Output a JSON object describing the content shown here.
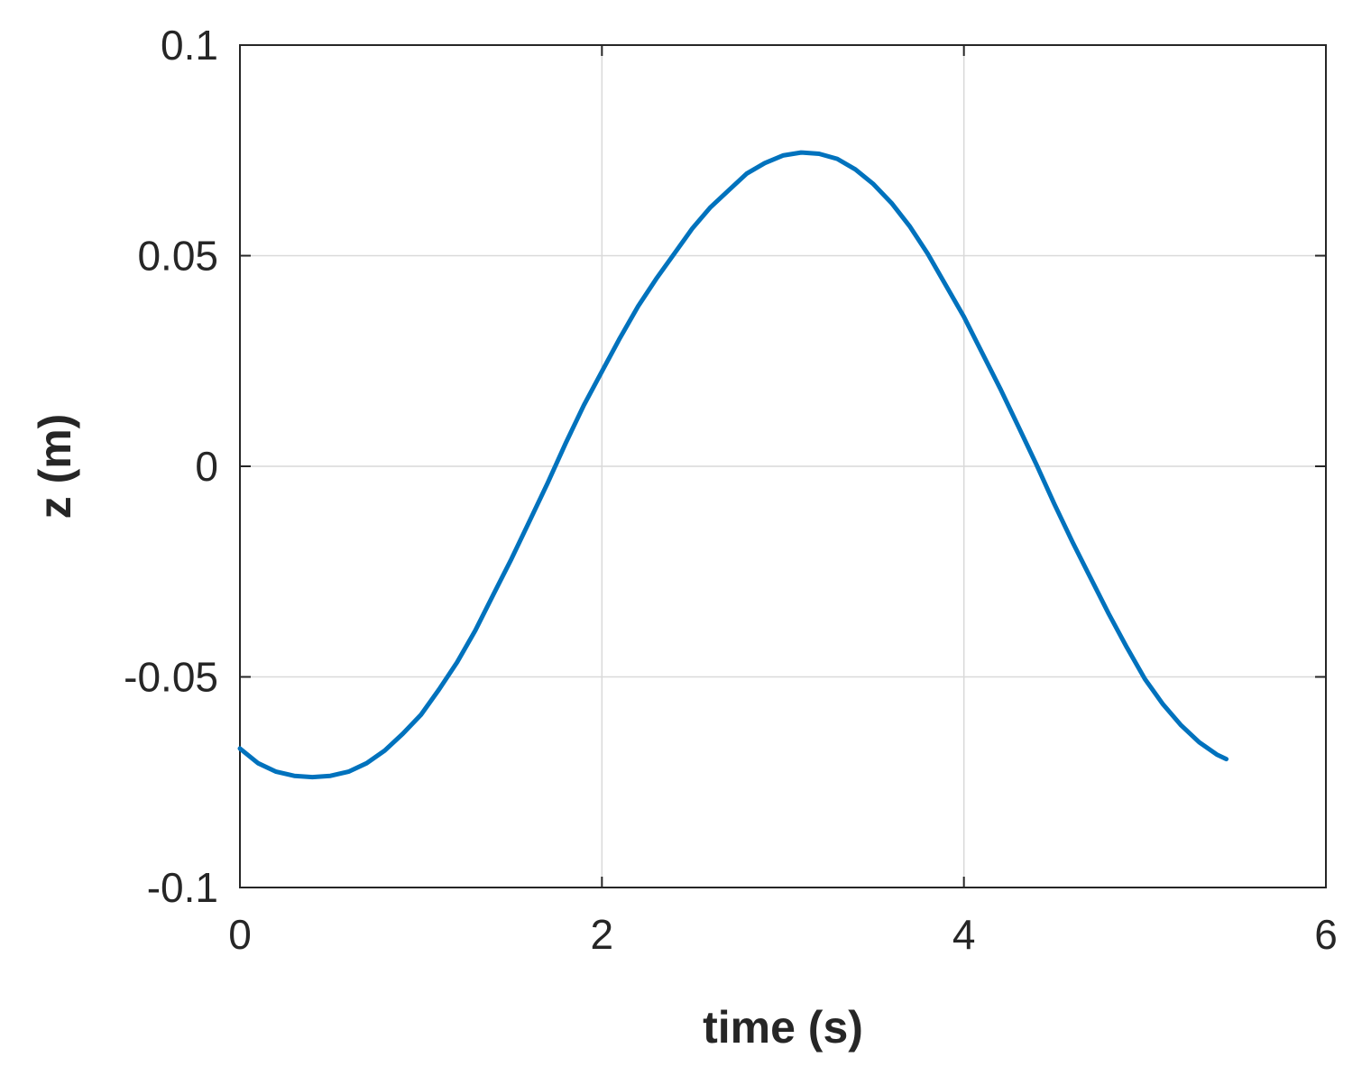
{
  "chart_data": {
    "type": "line",
    "title": "",
    "xlabel": "time (s)",
    "ylabel": "z (m)",
    "xlim": [
      0,
      6
    ],
    "ylim": [
      -0.1,
      0.1
    ],
    "xticks": [
      0,
      2,
      4,
      6
    ],
    "xtick_labels": [
      "0",
      "2",
      "4",
      "6"
    ],
    "yticks": [
      -0.1,
      -0.05,
      0,
      0.05,
      0.1
    ],
    "ytick_labels": [
      "-0.1",
      "-0.05",
      "0",
      "0.05",
      "0.1"
    ],
    "grid": true,
    "legend": "none",
    "colors": {
      "line": "#0072BD",
      "axes": "#262626",
      "grid": "#d9d9d9"
    },
    "series": [
      {
        "x": [
          0,
          0.1,
          0.2,
          0.3,
          0.4,
          0.5,
          0.6,
          0.7,
          0.8,
          0.9,
          1.0,
          1.1,
          1.2,
          1.3,
          1.4,
          1.5,
          1.6,
          1.7,
          1.8,
          1.9,
          2.0,
          2.1,
          2.2,
          2.3,
          2.4,
          2.5,
          2.6,
          2.7,
          2.8,
          2.9,
          3.0,
          3.1,
          3.2,
          3.3,
          3.4,
          3.5,
          3.6,
          3.7,
          3.8,
          3.9,
          4.0,
          4.1,
          4.2,
          4.3,
          4.4,
          4.5,
          4.6,
          4.7,
          4.8,
          4.9,
          5.0,
          5.1,
          5.2,
          5.3,
          5.4,
          5.45
        ],
        "values": [
          -0.067,
          -0.0705,
          -0.0725,
          -0.0735,
          -0.0738,
          -0.0735,
          -0.0725,
          -0.0705,
          -0.0675,
          -0.0635,
          -0.059,
          -0.053,
          -0.0465,
          -0.039,
          -0.0305,
          -0.022,
          -0.013,
          -0.004,
          0.0055,
          0.0145,
          0.0225,
          0.0305,
          0.038,
          0.0445,
          0.0505,
          0.0565,
          0.0615,
          0.0655,
          0.0695,
          0.072,
          0.0738,
          0.0745,
          0.0742,
          0.073,
          0.0705,
          0.067,
          0.0625,
          0.057,
          0.0505,
          0.043,
          0.0355,
          0.027,
          0.0185,
          0.0095,
          0.0005,
          -0.009,
          -0.018,
          -0.0265,
          -0.035,
          -0.043,
          -0.0505,
          -0.0565,
          -0.0615,
          -0.0655,
          -0.0685,
          -0.0695
        ]
      }
    ]
  }
}
